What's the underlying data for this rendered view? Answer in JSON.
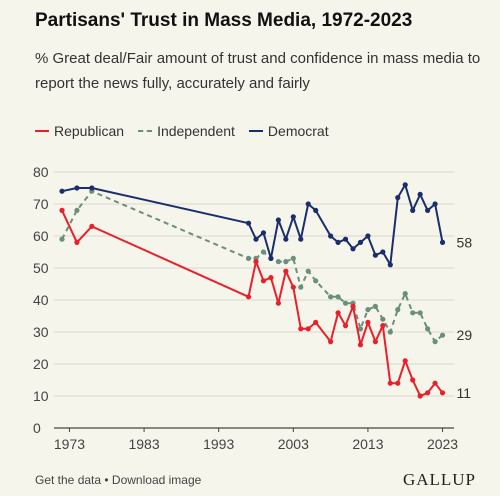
{
  "header": {
    "title": "Partisans' Trust in Mass Media, 1972-2023",
    "subtitle": "% Great deal/Fair amount of trust and confidence in mass media to report the news fully, accurately and fairly"
  },
  "footer": {
    "get_data": "Get the data",
    "separator": " • ",
    "download": "Download image",
    "logo": "GALLUP"
  },
  "chart_data": {
    "type": "line",
    "xlim": [
      1972,
      2024
    ],
    "ylim": [
      0,
      80
    ],
    "x_ticks": [
      "1973",
      "1983",
      "1993",
      "2003",
      "2013",
      "2023"
    ],
    "y_ticks": [
      "0",
      "10",
      "20",
      "30",
      "40",
      "50",
      "60",
      "70",
      "80"
    ],
    "grid": true,
    "legend_position": "top-left",
    "series": [
      {
        "name": "Republican",
        "color": "#e8202a",
        "dash": "solid",
        "end_label": "11",
        "x": [
          1972,
          1974,
          1976,
          1997,
          1998,
          1999,
          2000,
          2001,
          2002,
          2003,
          2004,
          2005,
          2006,
          2008,
          2009,
          2010,
          2011,
          2012,
          2013,
          2014,
          2015,
          2016,
          2017,
          2018,
          2019,
          2020,
          2021,
          2022,
          2023
        ],
        "y": [
          68,
          58,
          63,
          41,
          52,
          46,
          47,
          39,
          49,
          44,
          31,
          31,
          33,
          27,
          36,
          32,
          38,
          26,
          33,
          27,
          32,
          14,
          14,
          21,
          15,
          10,
          11,
          14,
          11
        ]
      },
      {
        "name": "Independent",
        "color": "#6a8f7b",
        "dash": "dashed",
        "end_label": "29",
        "x": [
          1972,
          1974,
          1976,
          1997,
          1998,
          1999,
          2000,
          2001,
          2002,
          2003,
          2004,
          2005,
          2006,
          2008,
          2009,
          2010,
          2011,
          2012,
          2013,
          2014,
          2015,
          2016,
          2017,
          2018,
          2019,
          2020,
          2021,
          2022,
          2023
        ],
        "y": [
          59,
          68,
          74,
          53,
          53,
          55,
          53,
          52,
          52,
          53,
          44,
          49,
          46,
          41,
          41,
          39,
          39,
          31,
          37,
          38,
          34,
          30,
          37,
          42,
          36,
          36,
          31,
          27,
          29
        ]
      },
      {
        "name": "Democrat",
        "color": "#1b2e6b",
        "dash": "solid",
        "end_label": "58",
        "x": [
          1972,
          1974,
          1976,
          1997,
          1998,
          1999,
          2000,
          2001,
          2002,
          2003,
          2004,
          2005,
          2006,
          2008,
          2009,
          2010,
          2011,
          2012,
          2013,
          2014,
          2015,
          2016,
          2017,
          2018,
          2019,
          2020,
          2021,
          2022,
          2023
        ],
        "y": [
          74,
          75,
          75,
          64,
          59,
          61,
          53,
          65,
          59,
          66,
          59,
          70,
          68,
          60,
          58,
          59,
          56,
          58,
          60,
          54,
          55,
          51,
          72,
          76,
          68,
          73,
          68,
          70,
          58
        ]
      }
    ]
  }
}
